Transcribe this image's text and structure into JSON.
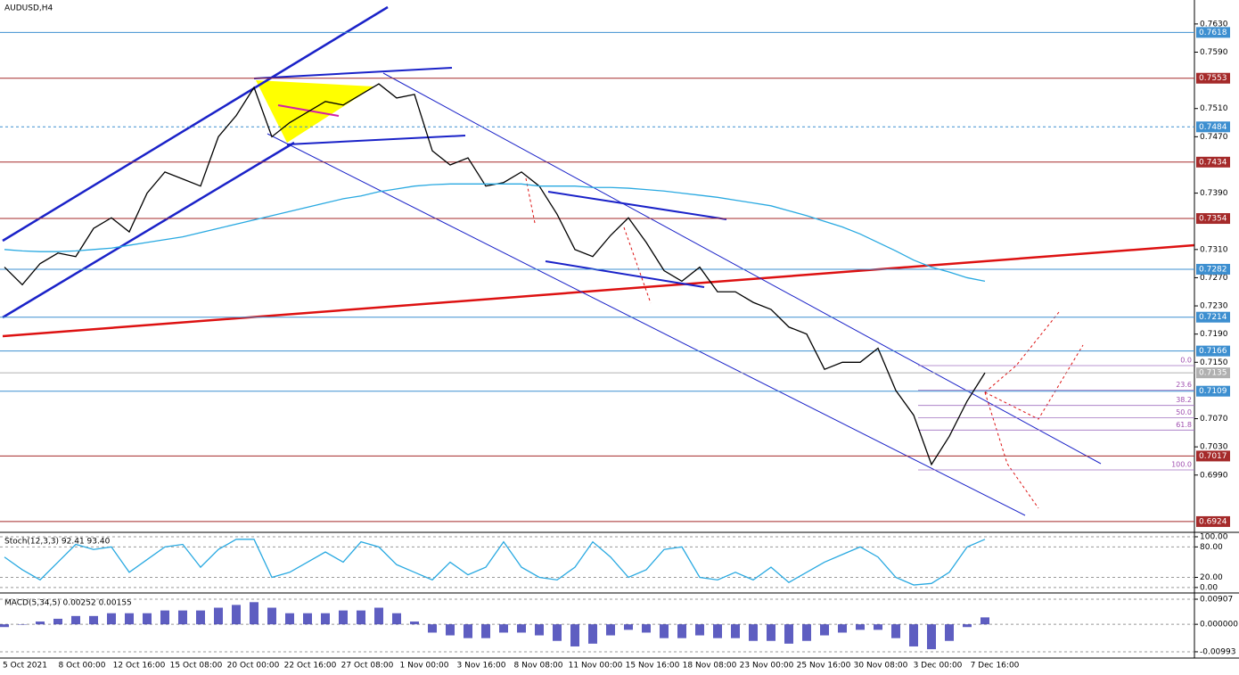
{
  "chart_data": [
    {
      "type": "line",
      "title": "AUDUSD,H4",
      "series": [
        {
          "color": "#000000",
          "values": [
            0.7285,
            0.726,
            0.729,
            0.7305,
            0.73,
            0.734,
            0.7355,
            0.7335,
            0.739,
            0.742,
            0.741,
            0.74,
            0.747,
            0.75,
            0.754,
            0.747,
            0.749,
            0.7505,
            0.752,
            0.7515,
            0.753,
            0.7545,
            0.7525,
            0.753,
            0.745,
            0.743,
            0.744,
            0.74,
            0.7405,
            0.742,
            0.74,
            0.736,
            0.731,
            0.73,
            0.733,
            0.7355,
            0.732,
            0.728,
            0.7265,
            0.7285,
            0.725,
            0.725,
            0.7235,
            0.7225,
            0.72,
            0.719,
            0.714,
            0.715,
            0.715,
            0.717,
            0.711,
            0.7075,
            0.7005,
            0.7045,
            0.7095,
            0.7135
          ]
        },
        {
          "color": "#29a9e1",
          "values": [
            0.731,
            0.7308,
            0.7307,
            0.7307,
            0.7308,
            0.731,
            0.7312,
            0.7316,
            0.732,
            0.7324,
            0.7328,
            0.7334,
            0.734,
            0.7346,
            0.7352,
            0.7358,
            0.7364,
            0.737,
            0.7376,
            0.7382,
            0.7386,
            0.7392,
            0.7396,
            0.74,
            0.7402,
            0.7403,
            0.7403,
            0.7403,
            0.7403,
            0.7403,
            0.74,
            0.74,
            0.74,
            0.7398,
            0.7398,
            0.7397,
            0.7395,
            0.7393,
            0.739,
            0.7387,
            0.7384,
            0.738,
            0.7376,
            0.7372,
            0.7365,
            0.7358,
            0.735,
            0.7342,
            0.7332,
            0.732,
            0.7308,
            0.7295,
            0.7285,
            0.7278,
            0.727,
            0.7265
          ]
        }
      ],
      "ylim": [
        0.691,
        0.7664
      ],
      "yticks": [
        {
          "value": 0.763,
          "label": "0.7630"
        },
        {
          "value": 0.759,
          "label": "0.7590"
        },
        {
          "value": 0.751,
          "label": "0.7510"
        },
        {
          "value": 0.747,
          "label": "0.7470"
        },
        {
          "value": 0.739,
          "label": "0.7390"
        },
        {
          "value": 0.731,
          "label": "0.7310"
        },
        {
          "value": 0.727,
          "label": "0.7270"
        },
        {
          "value": 0.723,
          "label": "0.7230"
        },
        {
          "value": 0.719,
          "label": "0.7190"
        },
        {
          "value": 0.715,
          "label": "0.7150"
        },
        {
          "value": 0.707,
          "label": "0.7070"
        },
        {
          "value": 0.703,
          "label": "0.7030"
        },
        {
          "value": 0.699,
          "label": "0.6990"
        }
      ],
      "levels": [
        {
          "value": 0.7618,
          "color": "#3d8fd0"
        },
        {
          "value": 0.7553,
          "color": "#a52a2a"
        },
        {
          "value": 0.7484,
          "color": "#3d8fd0"
        },
        {
          "value": 0.7434,
          "color": "#a52a2a"
        },
        {
          "value": 0.7354,
          "color": "#a52a2a"
        },
        {
          "value": 0.7282,
          "color": "#3d8fd0"
        },
        {
          "value": 0.7214,
          "color": "#3d8fd0"
        },
        {
          "value": 0.7166,
          "color": "#3d8fd0"
        },
        {
          "value": 0.7135,
          "color": "#b0b0b0"
        },
        {
          "value": 0.7109,
          "color": "#3d8fd0"
        },
        {
          "value": 0.7017,
          "color": "#a52a2a"
        },
        {
          "value": 0.6924,
          "color": "#a52a2a"
        }
      ],
      "fib": [
        {
          "value": 0,
          "label": "0.0"
        },
        23.6,
        38.2,
        {
          "value": 50,
          "label": "50.0"
        },
        61.8,
        {
          "value": 100,
          "label": "100.0"
        }
      ],
      "x_labels": [
        "5 Oct 2021",
        "8 Oct 00:00",
        "12 Oct 16:00",
        "15 Oct 08:00",
        "20 Oct 00:00",
        "22 Oct 16:00",
        "27 Oct 08:00",
        "1 Nov 00:00",
        "3 Nov 16:00",
        "8 Nov 08:00",
        "11 Nov 00:00",
        "15 Nov 16:00",
        "18 Nov 08:00",
        "23 Nov 00:00",
        "25 Nov 16:00",
        "30 Nov 08:00",
        "3 Dec 00:00",
        "7 Dec 16:00"
      ]
    },
    {
      "type": "line",
      "title": "Stoch(12,3,3) 92.41 93.40",
      "color": "#29a9e1",
      "values": [
        60,
        35,
        15,
        50,
        85,
        75,
        80,
        30,
        55,
        80,
        85,
        40,
        75,
        95,
        95,
        20,
        30,
        50,
        70,
        50,
        90,
        80,
        45,
        30,
        15,
        50,
        25,
        40,
        90,
        40,
        20,
        15,
        40,
        90,
        60,
        20,
        35,
        75,
        80,
        20,
        15,
        30,
        15,
        40,
        10,
        30,
        50,
        65,
        80,
        60,
        20,
        5,
        8,
        30,
        80,
        95
      ],
      "ylim": [
        -9,
        107
      ],
      "yticks": [
        {
          "value": 100,
          "label": "100.00"
        },
        {
          "value": 80,
          "label": "80.00"
        },
        {
          "value": 20,
          "label": "20.00"
        },
        {
          "value": 0,
          "label": "0.00"
        }
      ]
    },
    {
      "type": "bar",
      "title": "MACD(5,34,5) 0.00252 0.00155",
      "color": "#1a1aa6",
      "values": [
        -0.001,
        0,
        0.001,
        0.002,
        0.003,
        0.003,
        0.004,
        0.004,
        0.004,
        0.005,
        0.005,
        0.005,
        0.006,
        0.007,
        0.008,
        0.006,
        0.004,
        0.004,
        0.004,
        0.005,
        0.005,
        0.006,
        0.004,
        0.001,
        -0.003,
        -0.004,
        -0.005,
        -0.005,
        -0.003,
        -0.003,
        -0.004,
        -0.006,
        -0.008,
        -0.007,
        -0.004,
        -0.002,
        -0.003,
        -0.005,
        -0.005,
        -0.004,
        -0.005,
        -0.005,
        -0.006,
        -0.006,
        -0.007,
        -0.006,
        -0.004,
        -0.003,
        -0.002,
        -0.002,
        -0.005,
        -0.008,
        -0.009,
        -0.006,
        -0.001,
        0.0025
      ],
      "ylim": [
        -0.0122,
        0.011
      ],
      "yticks": [
        0.00907,
        {
          "value": 0,
          "label": "0.000000"
        },
        -0.00993
      ]
    }
  ]
}
